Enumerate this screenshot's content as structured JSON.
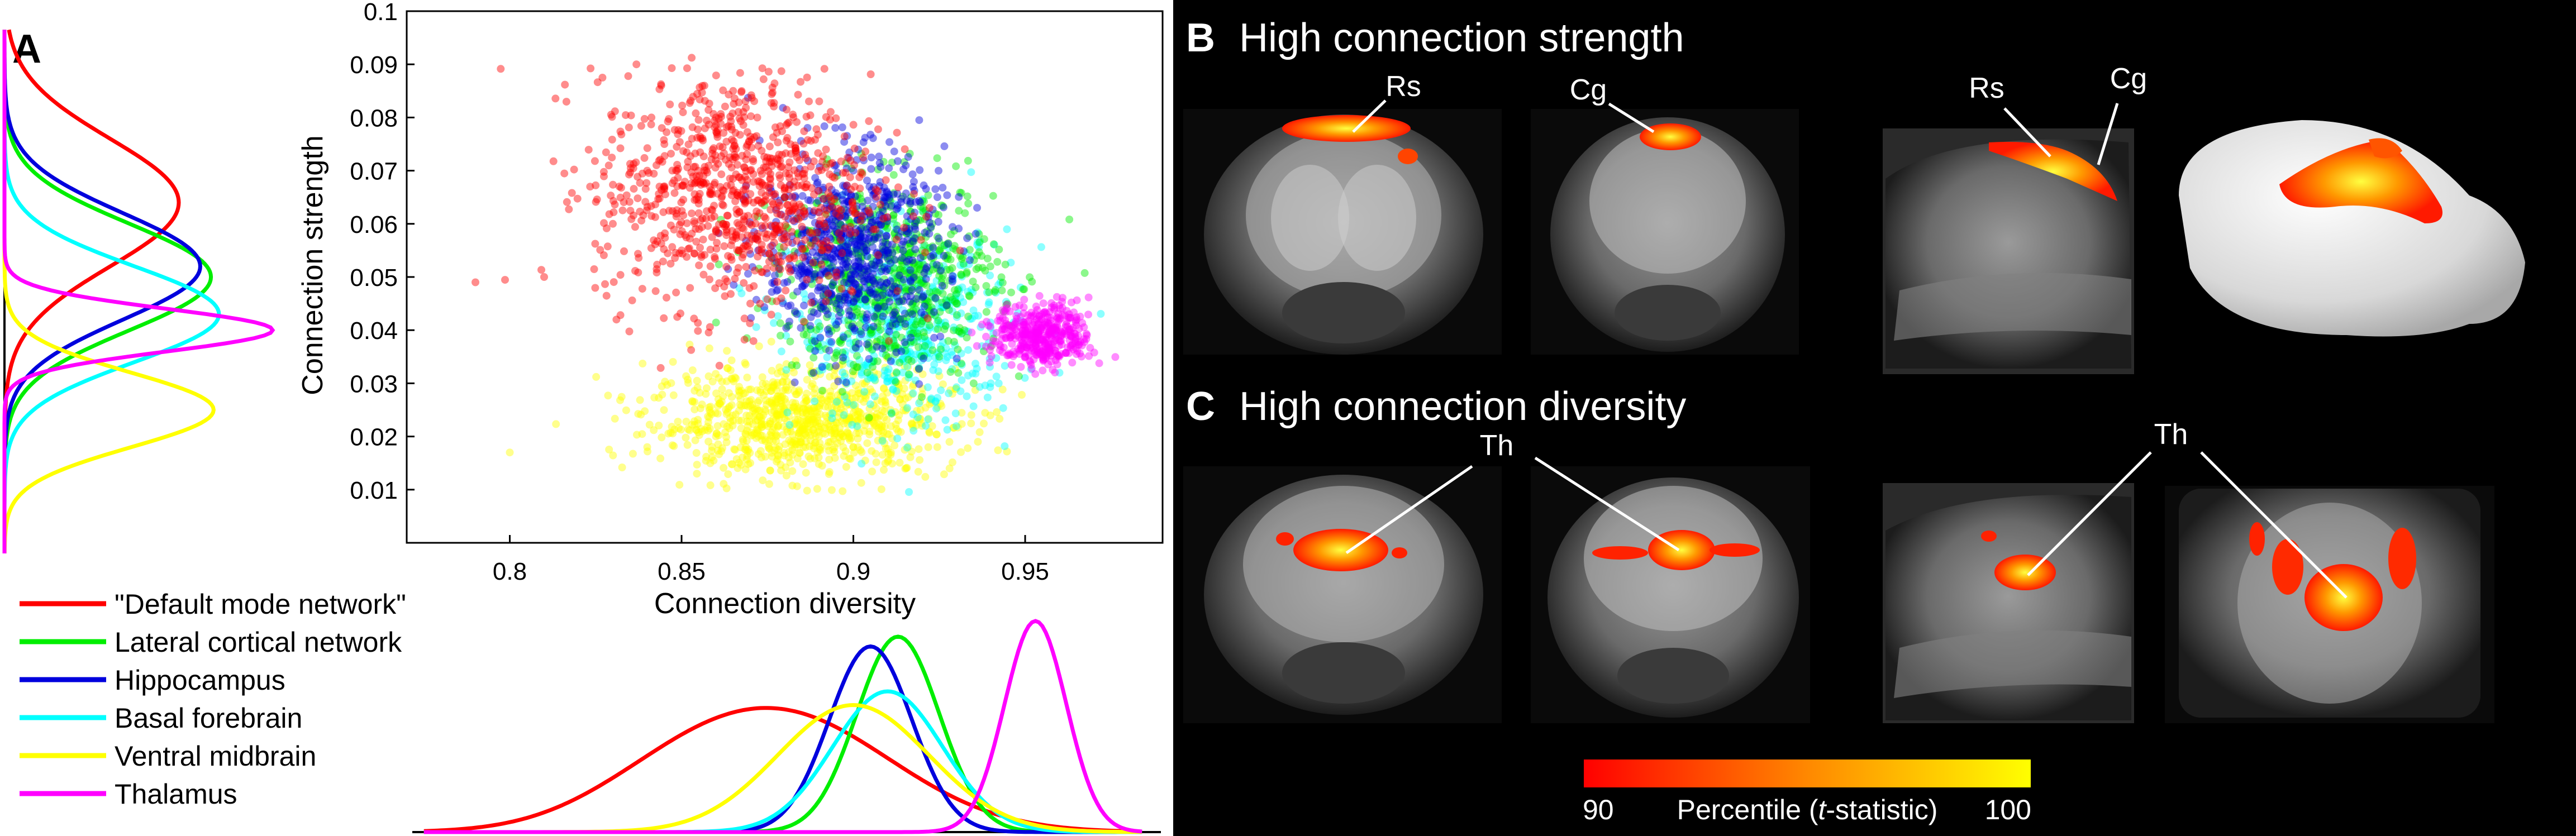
{
  "panel_a": {
    "label": "A",
    "scatter": {
      "xlabel": "Connection diversity",
      "ylabel": "Connection strength",
      "xlim": [
        0.77,
        0.99
      ],
      "ylim": [
        0.0,
        0.1
      ],
      "xticks": [
        "0.8",
        "0.85",
        "0.9",
        "0.95"
      ],
      "yticks": [
        "0.01",
        "0.02",
        "0.03",
        "0.04",
        "0.05",
        "0.06",
        "0.07",
        "0.08",
        "0.09",
        "0.1"
      ]
    },
    "legend": [
      {
        "label": "\"Default mode network\"",
        "color": "#ff0000"
      },
      {
        "label": "Lateral cortical network",
        "color": "#00ee00"
      },
      {
        "label": "Hippocampus",
        "color": "#0000dd"
      },
      {
        "label": "Basal forebrain",
        "color": "#00ffff"
      },
      {
        "label": "Ventral midbrain",
        "color": "#ffff00"
      },
      {
        "label": "Thalamus",
        "color": "#ff00ff"
      }
    ]
  },
  "panel_b": {
    "label": "B",
    "title": "High connection strength",
    "annotations": [
      "Rs",
      "Cg",
      "Rs",
      "Cg"
    ]
  },
  "panel_c": {
    "label": "C",
    "title": "High connection diversity",
    "annotations": [
      "Th",
      "Th"
    ]
  },
  "colorbar": {
    "min_label": "90",
    "title_prefix": "Percentile (",
    "title_italic": "t",
    "title_suffix": "-statistic)",
    "max_label": "100",
    "colors": [
      "#ff0000",
      "#ff8800",
      "#ffff00"
    ]
  },
  "chart_data": {
    "type": "scatter",
    "xlabel": "Connection diversity",
    "ylabel": "Connection strength",
    "xlim": [
      0.77,
      0.99
    ],
    "ylim": [
      0.0,
      0.1
    ],
    "grid": false,
    "series": [
      {
        "name": "\"Default mode network\"",
        "color": "#ff0000",
        "center": [
          0.865,
          0.066
        ],
        "spread": [
          0.02,
          0.011
        ],
        "points": [
          [
            0.845,
            0.075
          ],
          [
            0.86,
            0.08
          ],
          [
            0.87,
            0.07
          ],
          [
            0.855,
            0.062
          ],
          [
            0.875,
            0.058
          ],
          [
            0.84,
            0.07
          ],
          [
            0.865,
            0.085
          ],
          [
            0.88,
            0.065
          ],
          [
            0.85,
            0.055
          ],
          [
            0.83,
            0.06
          ],
          [
            0.81,
            0.05
          ],
          [
            0.79,
            0.049
          ],
          [
            0.895,
            0.05
          ],
          [
            0.87,
            0.045
          ]
        ]
      },
      {
        "name": "Lateral cortical network",
        "color": "#00ee00",
        "center": [
          0.91,
          0.05
        ],
        "spread": [
          0.016,
          0.009
        ],
        "points": [
          [
            0.9,
            0.06
          ],
          [
            0.915,
            0.048
          ],
          [
            0.92,
            0.055
          ],
          [
            0.905,
            0.04
          ],
          [
            0.93,
            0.045
          ],
          [
            0.925,
            0.035
          ],
          [
            0.895,
            0.065
          ],
          [
            0.935,
            0.03
          ]
        ]
      },
      {
        "name": "Hippocampus",
        "color": "#0000dd",
        "center": [
          0.9,
          0.055
        ],
        "spread": [
          0.013,
          0.009
        ],
        "points": [
          [
            0.89,
            0.06
          ],
          [
            0.9,
            0.07
          ],
          [
            0.905,
            0.05
          ],
          [
            0.895,
            0.045
          ],
          [
            0.91,
            0.055
          ],
          [
            0.88,
            0.065
          ]
        ]
      },
      {
        "name": "Basal forebrain",
        "color": "#00ffff",
        "center": [
          0.915,
          0.04
        ],
        "spread": [
          0.016,
          0.009
        ],
        "points": [
          [
            0.91,
            0.04
          ],
          [
            0.92,
            0.035
          ],
          [
            0.93,
            0.04
          ],
          [
            0.9,
            0.045
          ],
          [
            0.94,
            0.03
          ],
          [
            0.96,
            0.032
          ]
        ]
      },
      {
        "name": "Ventral midbrain",
        "color": "#ffff00",
        "center": [
          0.885,
          0.023
        ],
        "spread": [
          0.022,
          0.005
        ],
        "points": [
          [
            0.86,
            0.02
          ],
          [
            0.88,
            0.025
          ],
          [
            0.9,
            0.018
          ],
          [
            0.87,
            0.015
          ],
          [
            0.92,
            0.022
          ],
          [
            0.8,
            0.017
          ],
          [
            0.84,
            0.018
          ]
        ]
      },
      {
        "name": "Thalamus",
        "color": "#ff00ff",
        "center": [
          0.955,
          0.039
        ],
        "spread": [
          0.007,
          0.003
        ],
        "points": [
          [
            0.95,
            0.04
          ],
          [
            0.96,
            0.038
          ],
          [
            0.965,
            0.042
          ],
          [
            0.955,
            0.036
          ],
          [
            0.945,
            0.041
          ]
        ]
      }
    ],
    "marginal_x": {
      "description_axis": "Connection diversity",
      "peaks": [
        {
          "series": "\"Default mode network\"",
          "mean": 0.88,
          "sd": 0.032,
          "height": 0.58
        },
        {
          "series": "Lateral cortical network",
          "mean": 0.913,
          "sd": 0.012,
          "height": 1.0
        },
        {
          "series": "Hippocampus",
          "mean": 0.905,
          "sd": 0.012,
          "height": 0.95
        },
        {
          "series": "Basal forebrain",
          "mean": 0.91,
          "sd": 0.016,
          "height": 0.72
        },
        {
          "series": "Ventral midbrain",
          "mean": 0.9,
          "sd": 0.022,
          "height": 0.65
        },
        {
          "series": "Thalamus",
          "mean": 0.953,
          "sd": 0.009,
          "height": 1.08
        }
      ]
    },
    "marginal_y": {
      "description_axis": "Connection strength",
      "peaks": [
        {
          "series": "\"Default mode network\"",
          "mean": 0.064,
          "sd": 0.012,
          "height": 0.65
        },
        {
          "series": "Lateral cortical network",
          "mean": 0.05,
          "sd": 0.01,
          "height": 0.77
        },
        {
          "series": "Hippocampus",
          "mean": 0.052,
          "sd": 0.01,
          "height": 0.73
        },
        {
          "series": "Basal forebrain",
          "mean": 0.043,
          "sd": 0.009,
          "height": 0.8
        },
        {
          "series": "Ventral midbrain",
          "mean": 0.025,
          "sd": 0.007,
          "height": 0.78
        },
        {
          "series": "Thalamus",
          "mean": 0.04,
          "sd": 0.004,
          "height": 1.0
        }
      ]
    }
  }
}
